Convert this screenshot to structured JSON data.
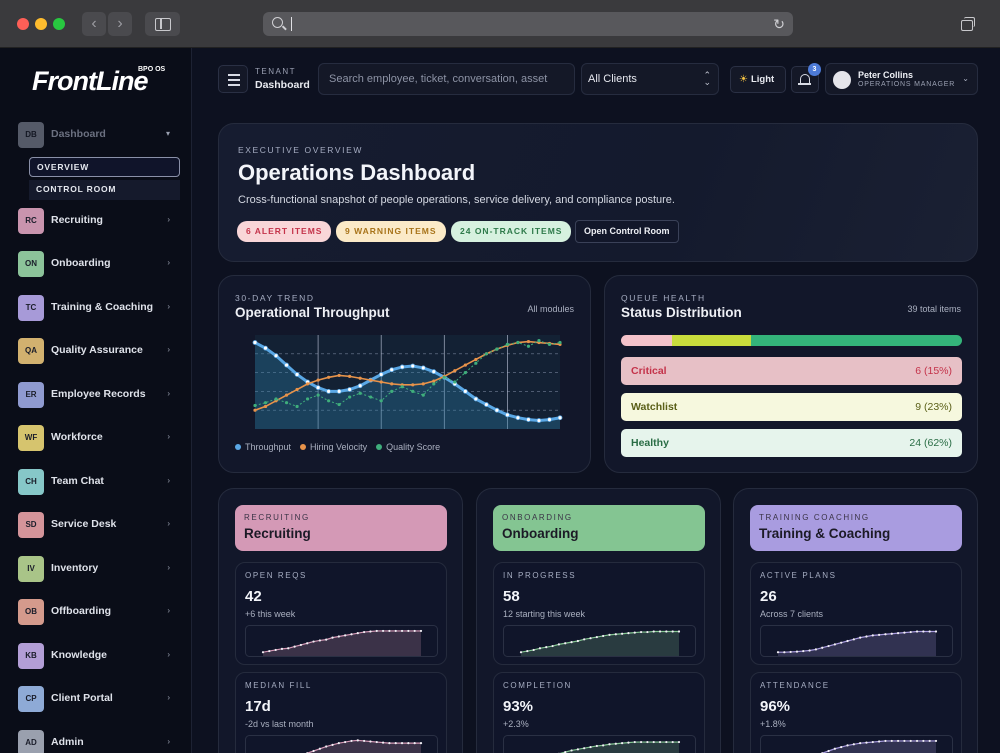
{
  "brand": {
    "name": "FrontLine",
    "sup": "BPO OS"
  },
  "nav": [
    {
      "code": "DB",
      "label": "Dashboard",
      "color": "#7e8494",
      "active": true
    },
    {
      "code": "RC",
      "label": "Recruiting",
      "color": "#c994ae"
    },
    {
      "code": "ON",
      "label": "Onboarding",
      "color": "#8cc39a"
    },
    {
      "code": "TC",
      "label": "Training & Coaching",
      "color": "#a79ad8"
    },
    {
      "code": "QA",
      "label": "Quality Assurance",
      "color": "#d2b16f"
    },
    {
      "code": "ER",
      "label": "Employee Records",
      "color": "#8f9ad0"
    },
    {
      "code": "WF",
      "label": "Workforce",
      "color": "#d6c46e"
    },
    {
      "code": "CH",
      "label": "Team Chat",
      "color": "#86c7c8"
    },
    {
      "code": "SD",
      "label": "Service Desk",
      "color": "#d4949a"
    },
    {
      "code": "IV",
      "label": "Inventory",
      "color": "#a9c488"
    },
    {
      "code": "OB",
      "label": "Offboarding",
      "color": "#d49a8c"
    },
    {
      "code": "KB",
      "label": "Knowledge",
      "color": "#b39ed6"
    },
    {
      "code": "CP",
      "label": "Client Portal",
      "color": "#8eaad6"
    },
    {
      "code": "AD",
      "label": "Admin",
      "color": "#9aa0ae"
    }
  ],
  "subnav": [
    "OVERVIEW",
    "CONTROL ROOM"
  ],
  "topbar": {
    "tenant_key": "TENANT",
    "tenant_value": "Dashboard",
    "search_placeholder": "Search employee, ticket, conversation, asset",
    "client_select": "All Clients",
    "theme_label": "Light",
    "notif_count": "3",
    "user_name": "Peter Collins",
    "user_role": "OPERATIONS MANAGER"
  },
  "hero": {
    "eyebrow": "EXECUTIVE OVERVIEW",
    "title": "Operations Dashboard",
    "subtitle": "Cross-functional snapshot of people operations, service delivery, and compliance posture.",
    "pill_alert": "6 ALERT ITEMS",
    "pill_warn": "9 WARNING ITEMS",
    "pill_ok": "24 ON-TRACK ITEMS",
    "cta": "Open Control Room"
  },
  "trend": {
    "eyebrow": "30-DAY TREND",
    "title": "Operational Throughput",
    "meta": "All modules"
  },
  "chart_data": {
    "type": "line",
    "x": [
      1,
      2,
      3,
      4,
      5,
      6,
      7,
      8,
      9,
      10,
      11,
      12,
      13,
      14,
      15,
      16,
      17,
      18,
      19,
      20,
      21,
      22,
      23,
      24,
      25,
      26,
      27,
      28,
      29,
      30
    ],
    "ylim": [
      0,
      100
    ],
    "series": [
      {
        "name": "Throughput",
        "color": "#5aa8e6",
        "values": [
          92,
          86,
          78,
          68,
          58,
          50,
          44,
          40,
          40,
          42,
          46,
          52,
          58,
          63,
          66,
          67,
          65,
          61,
          55,
          48,
          40,
          32,
          26,
          20,
          15,
          12,
          10,
          9,
          10,
          12
        ]
      },
      {
        "name": "Hiring Velocity",
        "color": "#e8934a",
        "values": [
          20,
          24,
          30,
          36,
          42,
          48,
          52,
          55,
          57,
          56,
          54,
          52,
          50,
          48,
          47,
          47,
          48,
          51,
          56,
          62,
          68,
          74,
          80,
          85,
          89,
          92,
          93,
          92,
          91,
          90
        ]
      },
      {
        "name": "Quality Score",
        "color": "#3fae7c",
        "values": [
          25,
          28,
          32,
          28,
          24,
          32,
          36,
          30,
          26,
          34,
          38,
          34,
          30,
          40,
          45,
          40,
          36,
          48,
          55,
          50,
          60,
          70,
          80,
          85,
          90,
          92,
          88,
          94,
          90,
          92
        ]
      }
    ]
  },
  "queue": {
    "eyebrow": "QUEUE HEALTH",
    "title": "Status Distribution",
    "meta": "39 total items",
    "segments": [
      {
        "name": "Critical",
        "value": "6 (15%)",
        "pct": 15,
        "bar": "#f4c2ca",
        "bg": "#e7c0c6",
        "fg": "#c4334a"
      },
      {
        "name": "Watchlist",
        "value": "9 (23%)",
        "pct": 23,
        "bar": "#c9dc3c",
        "bg": "#f6f8de",
        "fg": "#5a5f18"
      },
      {
        "name": "Healthy",
        "value": "24 (62%)",
        "pct": 62,
        "bar": "#34b47a",
        "bg": "#e6f4ec",
        "fg": "#2a6d45"
      }
    ]
  },
  "modules": [
    {
      "eyebrow": "RECRUITING",
      "title": "Recruiting",
      "color": "#d499b6",
      "kpis": [
        {
          "label": "OPEN REQS",
          "value": "42",
          "delta": "+6 this week",
          "spark": [
            10,
            14,
            18,
            22,
            24,
            30,
            36,
            42,
            48,
            52,
            55,
            62,
            66,
            70,
            74,
            78,
            82,
            84,
            86,
            86,
            86,
            86,
            86,
            86,
            86,
            86
          ]
        },
        {
          "label": "MEDIAN FILL",
          "value": "17d",
          "delta": "-2d vs last month",
          "spark": [
            10,
            12,
            14,
            16,
            20,
            26,
            34,
            42,
            50,
            58,
            66,
            72,
            78,
            82,
            86,
            88,
            86,
            84,
            82,
            80,
            78,
            78,
            78,
            78,
            78,
            78
          ]
        }
      ]
    },
    {
      "eyebrow": "ONBOARDING",
      "title": "Onboarding",
      "color": "#84c592",
      "kpis": [
        {
          "label": "IN PROGRESS",
          "value": "58",
          "delta": "12 starting this week",
          "spark": [
            10,
            14,
            18,
            24,
            28,
            32,
            38,
            42,
            46,
            50,
            56,
            60,
            64,
            68,
            72,
            74,
            76,
            78,
            80,
            82,
            82,
            84,
            84,
            84,
            84,
            84
          ]
        },
        {
          "label": "COMPLETION",
          "value": "93%",
          "delta": "+2.3%",
          "spark": [
            10,
            14,
            18,
            22,
            28,
            34,
            40,
            46,
            52,
            56,
            60,
            64,
            68,
            70,
            74,
            76,
            78,
            80,
            82,
            82,
            82,
            82,
            82,
            82,
            82,
            82
          ]
        }
      ]
    },
    {
      "eyebrow": "TRAINING COACHING",
      "title": "Training & Coaching",
      "color": "#a99ce0",
      "kpis": [
        {
          "label": "ACTIVE PLANS",
          "value": "26",
          "delta": "Across 7 clients",
          "spark": [
            10,
            10,
            11,
            12,
            14,
            16,
            20,
            26,
            32,
            38,
            44,
            50,
            56,
            62,
            66,
            70,
            72,
            74,
            76,
            78,
            80,
            82,
            84,
            84,
            84,
            84
          ]
        },
        {
          "label": "ATTENDANCE",
          "value": "96%",
          "delta": "+1.8%",
          "spark": [
            10,
            12,
            14,
            18,
            22,
            28,
            34,
            42,
            50,
            58,
            64,
            70,
            74,
            78,
            80,
            82,
            84,
            86,
            86,
            86,
            86,
            86,
            86,
            86,
            86,
            86
          ]
        }
      ]
    }
  ]
}
